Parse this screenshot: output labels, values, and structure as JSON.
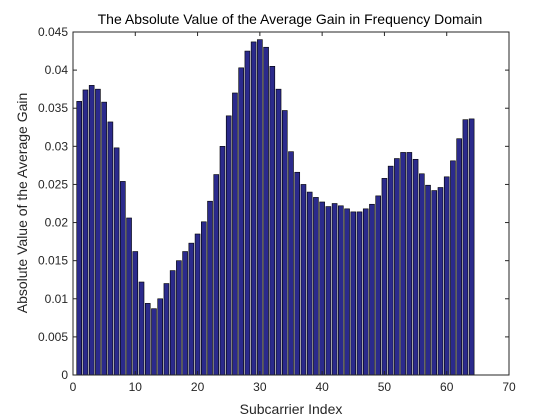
{
  "chart_data": {
    "type": "bar",
    "title": "The Absolute Value of the Average Gain in Frequency Domain",
    "xlabel": "Subcarrier Index",
    "ylabel": "Absolute Value of the Average Gain",
    "xlim": [
      0,
      70
    ],
    "ylim": [
      0,
      0.045
    ],
    "xticks": [
      0,
      10,
      20,
      30,
      40,
      50,
      60,
      70
    ],
    "yticks": [
      0,
      0.005,
      0.01,
      0.015,
      0.02,
      0.025,
      0.03,
      0.035,
      0.04,
      0.045
    ],
    "x_tick_labels": [
      "0",
      "10",
      "20",
      "30",
      "40",
      "50",
      "60",
      "70"
    ],
    "y_tick_labels": [
      "0",
      "0.005",
      "0.01",
      "0.015",
      "0.02",
      "0.025",
      "0.03",
      "0.035",
      "0.04",
      "0.045"
    ],
    "grid": false,
    "bar_color": "#2b2a8c",
    "bar_edge_color": "#000000",
    "x": [
      1,
      2,
      3,
      4,
      5,
      6,
      7,
      8,
      9,
      10,
      11,
      12,
      13,
      14,
      15,
      16,
      17,
      18,
      19,
      20,
      21,
      22,
      23,
      24,
      25,
      26,
      27,
      28,
      29,
      30,
      31,
      32,
      33,
      34,
      35,
      36,
      37,
      38,
      39,
      40,
      41,
      42,
      43,
      44,
      45,
      46,
      47,
      48,
      49,
      50,
      51,
      52,
      53,
      54,
      55,
      56,
      57,
      58,
      59,
      60,
      61,
      62,
      63,
      64
    ],
    "values": [
      0.0359,
      0.0374,
      0.038,
      0.0375,
      0.0358,
      0.0332,
      0.0298,
      0.0254,
      0.0206,
      0.0162,
      0.0122,
      0.0094,
      0.0087,
      0.01,
      0.012,
      0.0137,
      0.015,
      0.0162,
      0.0173,
      0.0185,
      0.0201,
      0.0228,
      0.0263,
      0.03,
      0.034,
      0.037,
      0.0403,
      0.0425,
      0.0437,
      0.044,
      0.043,
      0.0405,
      0.0375,
      0.0347,
      0.0293,
      0.0266,
      0.025,
      0.024,
      0.0233,
      0.0227,
      0.0221,
      0.0225,
      0.0222,
      0.0218,
      0.0214,
      0.0214,
      0.0218,
      0.0224,
      0.0235,
      0.0258,
      0.0274,
      0.0284,
      0.0292,
      0.0292,
      0.0283,
      0.0264,
      0.0249,
      0.0242,
      0.0246,
      0.026,
      0.0281,
      0.031,
      0.0335,
      0.0336
    ]
  }
}
